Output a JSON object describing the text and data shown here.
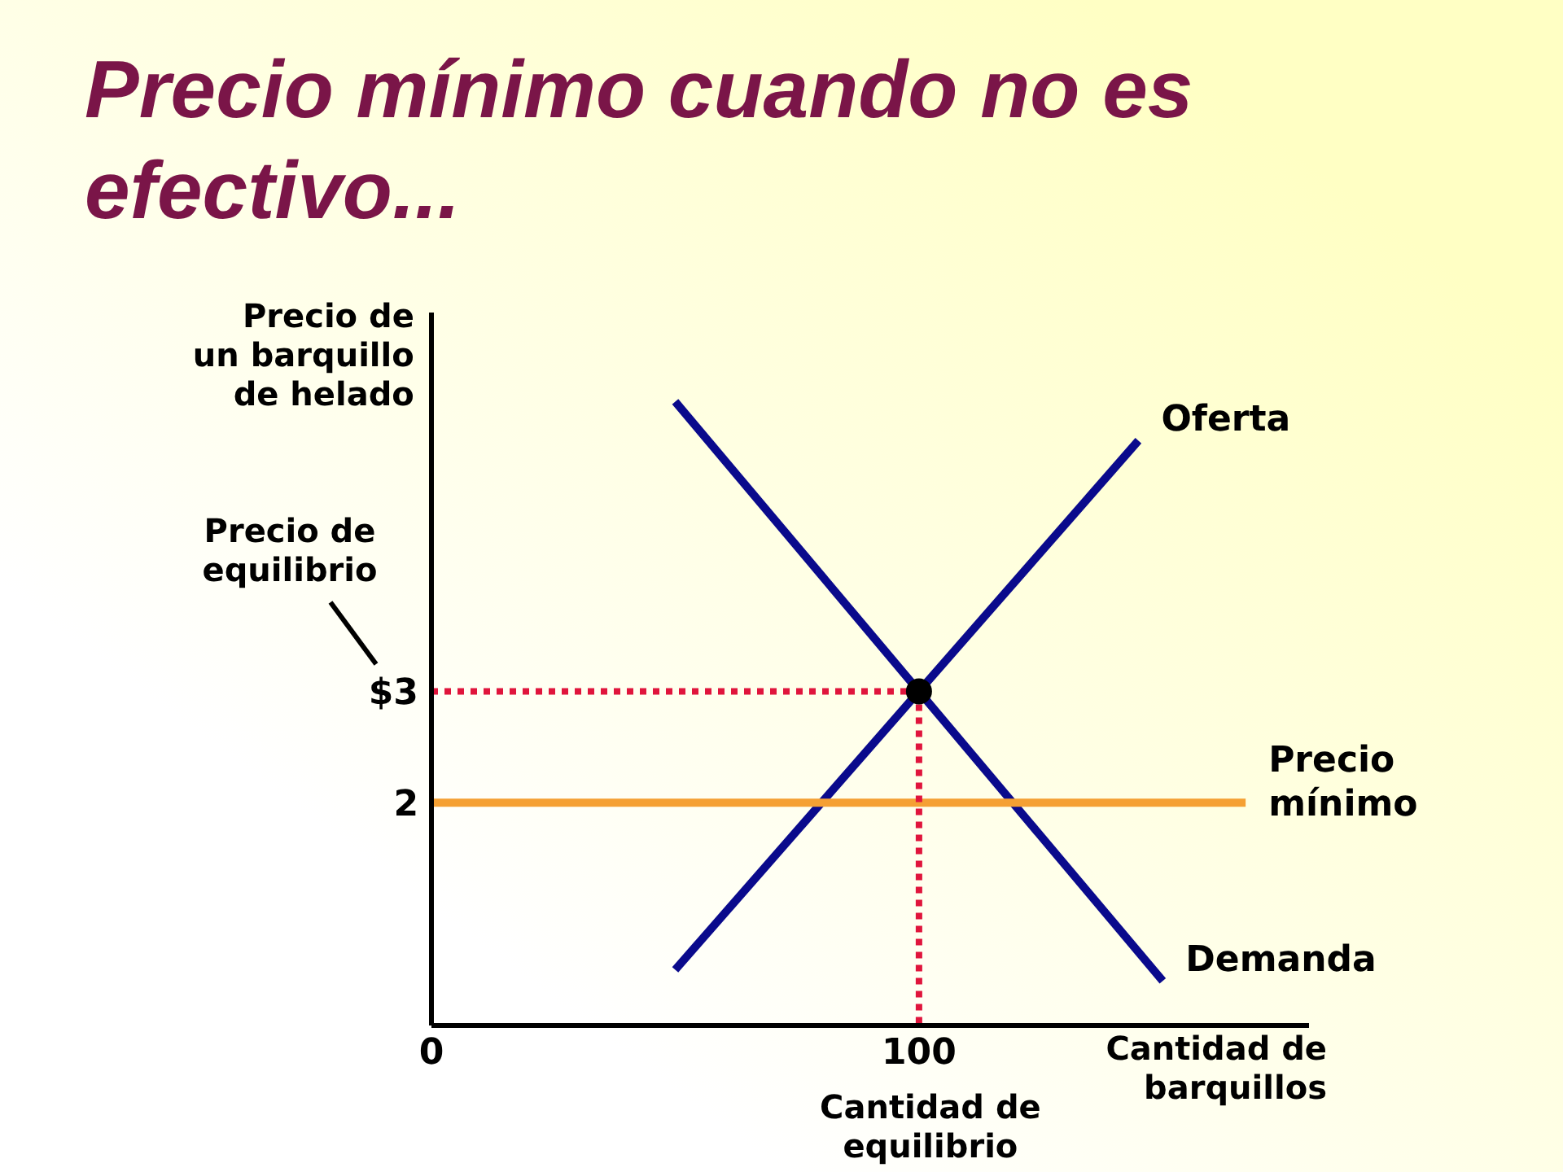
{
  "chart_data": {
    "type": "line",
    "title": "Precio mínimo cuando no es efectivo...",
    "xlabel": "Cantidad de barquillos",
    "ylabel": "Precio de un barquillo de helado",
    "series": [
      {
        "name": "Oferta",
        "color": "#0a0a8c",
        "x": [
          50,
          145
        ],
        "values": [
          0.5,
          5.25
        ]
      },
      {
        "name": "Demanda",
        "color": "#0a0a8c",
        "x": [
          50,
          150
        ],
        "values": [
          5.6,
          0.4
        ]
      },
      {
        "name": "Precio mínimo",
        "color": "#f5a033",
        "x": [
          0,
          167
        ],
        "values": [
          2,
          2
        ]
      },
      {
        "color": "#e0153c",
        "x": [
          0,
          100
        ],
        "values": [
          3,
          3
        ],
        "line_style": "dotted"
      },
      {
        "color": "#e0153c",
        "x": [
          100,
          100
        ],
        "values": [
          3,
          0
        ],
        "line_style": "dotted"
      },
      {
        "type": "scatter",
        "color": "#000000",
        "x": [
          100
        ],
        "values": [
          3
        ],
        "marker": "circle"
      }
    ],
    "xlim": [
      0,
      180
    ],
    "ylim": [
      0,
      6.4
    ],
    "xticks": [
      0,
      100
    ],
    "yticks": [
      2,
      {
        "value": 3,
        "label": "$3"
      }
    ],
    "line_style": "solid",
    "annotations": [
      "Precio de equilibrio",
      {
        "text": "Cantidad de equilibrio",
        "x": 100,
        "y": 0
      }
    ]
  }
}
